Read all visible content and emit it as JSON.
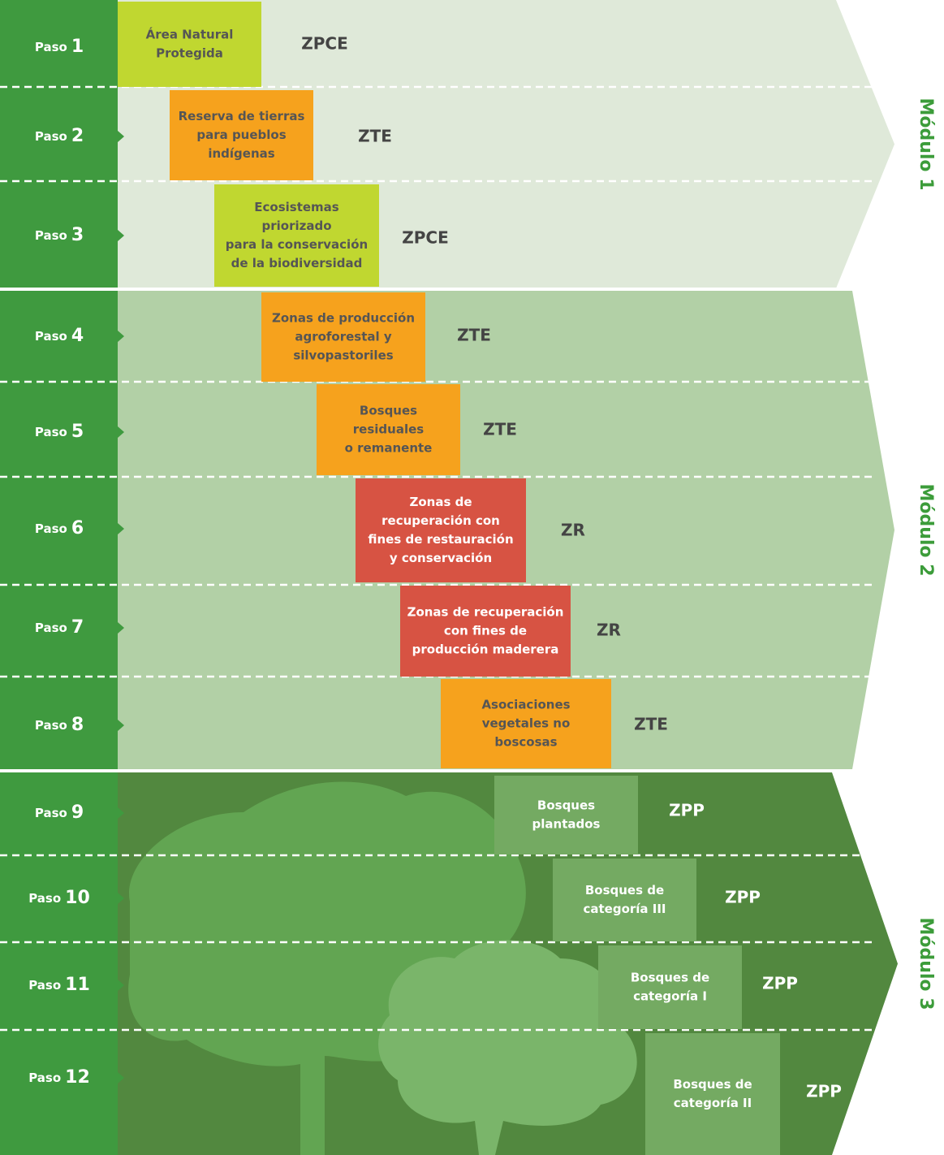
{
  "modules": [
    {
      "label": "Módulo 1",
      "color": "#dfe9d9"
    },
    {
      "label": "Módulo 2",
      "color": "#b2d0a6"
    },
    {
      "label": "Módulo 3",
      "color": "#52883f"
    }
  ],
  "steps": [
    {
      "paso": "Paso",
      "number": "1",
      "lines": [
        "Área Natural",
        "Protegida"
      ],
      "code": "ZPCE",
      "box_color": "#c0d730"
    },
    {
      "paso": "Paso",
      "number": "2",
      "lines": [
        "Reserva de tierras",
        "para pueblos",
        "indígenas"
      ],
      "code": "ZTE",
      "box_color": "#f6a21d"
    },
    {
      "paso": "Paso",
      "number": "3",
      "lines": [
        "Ecosistemas",
        "priorizado",
        "para la conservación",
        "de la biodiversidad"
      ],
      "code": "ZPCE",
      "box_color": "#c0d730"
    },
    {
      "paso": "Paso",
      "number": "4",
      "lines": [
        "Zonas de producción",
        "agroforestal y",
        "silvopastoriles"
      ],
      "code": "ZTE",
      "box_color": "#f6a21d"
    },
    {
      "paso": "Paso",
      "number": "5",
      "lines": [
        "Bosques",
        "residuales",
        "o remanente"
      ],
      "code": "ZTE",
      "box_color": "#f6a21d"
    },
    {
      "paso": "Paso",
      "number": "6",
      "lines": [
        "Zonas de",
        "recuperación con",
        "fines de restauración",
        "y conservación"
      ],
      "code": "ZR",
      "box_color": "#d75343"
    },
    {
      "paso": "Paso",
      "number": "7",
      "lines": [
        "Zonas de recuperación",
        "con fines de",
        "producción maderera"
      ],
      "code": "ZR",
      "box_color": "#d75343"
    },
    {
      "paso": "Paso",
      "number": "8",
      "lines": [
        "Asociaciones",
        "vegetales no",
        "boscosas"
      ],
      "code": "ZTE",
      "box_color": "#f6a21d"
    },
    {
      "paso": "Paso",
      "number": "9",
      "lines": [
        "Bosques",
        "plantados"
      ],
      "code": "ZPP",
      "box_color": "#74aa62"
    },
    {
      "paso": "Paso",
      "number": "10",
      "lines": [
        "Bosques de",
        "categoría III"
      ],
      "code": "ZPP",
      "box_color": "#74aa62"
    },
    {
      "paso": "Paso",
      "number": "11",
      "lines": [
        "Bosques de",
        "categoría I"
      ],
      "code": "ZPP",
      "box_color": "#74aa62"
    },
    {
      "paso": "Paso",
      "number": "12",
      "lines": [
        "Bosques de",
        "categoría II"
      ],
      "code": "ZPP",
      "box_color": "#74aa62"
    }
  ]
}
